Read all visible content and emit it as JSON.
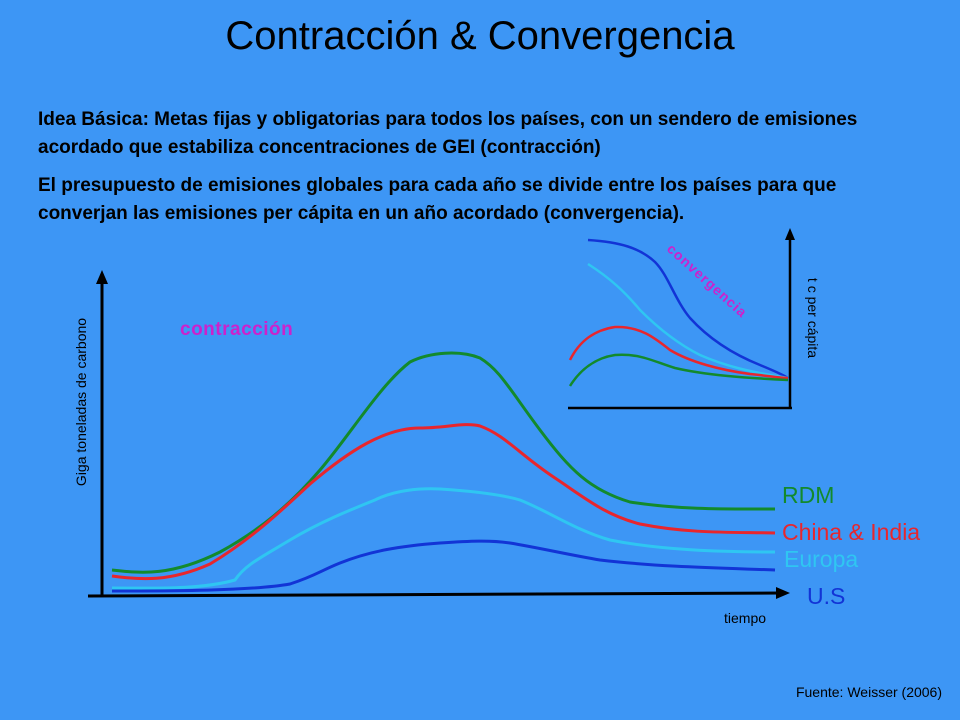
{
  "title": "Contracción & Convergencia",
  "paragraph1": "Idea Básica: Metas fijas y obligatorias para todos los países, con  un sendero de emisiones acordado que estabiliza concentraciones de GEI (contracción)",
  "paragraph2": "El presupuesto de emisiones globales para cada año se divide entre los países para que converjan las emisiones per cápita en un año acordado (convergencia).",
  "main_chart": {
    "ylabel": "Giga toneladas de carbono",
    "xlabel": "tiempo",
    "annotation": "contracción",
    "series": [
      {
        "name": "RDM",
        "color": "#138a2c"
      },
      {
        "name": "China & India",
        "color": "#e8262d"
      },
      {
        "name": "Europa",
        "color": "#2fc6f2"
      },
      {
        "name": "U.S",
        "color": "#1234d6"
      }
    ]
  },
  "inset_chart": {
    "ylabel": "t c per cápita",
    "annotation": "convergencia"
  },
  "source": "Fuente: Weisser (2006)",
  "colors": {
    "background": "#3d96f5",
    "annotation": "#cc22cc"
  }
}
